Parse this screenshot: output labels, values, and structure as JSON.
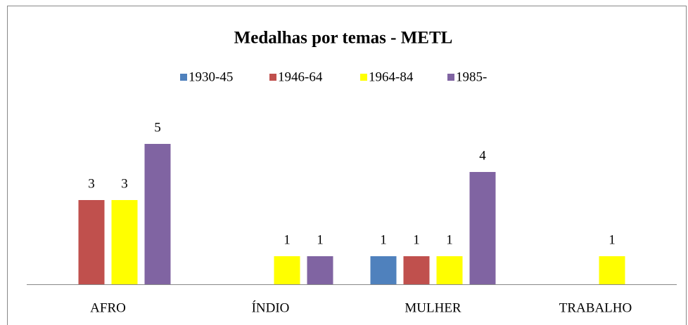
{
  "chart_data": {
    "type": "bar",
    "title": "Medalhas por temas - METL",
    "categories": [
      "AFRO",
      "ÍNDIO",
      "MULHER",
      "TRABALHO"
    ],
    "series": [
      {
        "name": "1930-45",
        "color": "#4f81bd",
        "values": [
          null,
          null,
          1,
          null
        ]
      },
      {
        "name": "1946-64",
        "color": "#c0504d",
        "values": [
          3,
          null,
          1,
          null
        ]
      },
      {
        "name": "1964-84",
        "color": "#ffff00",
        "values": [
          3,
          1,
          1,
          1
        ]
      },
      {
        "name": "1985-",
        "color": "#8064a2",
        "values": [
          5,
          1,
          4,
          null
        ]
      }
    ],
    "ylim": [
      0,
      6
    ],
    "legend": "top"
  }
}
